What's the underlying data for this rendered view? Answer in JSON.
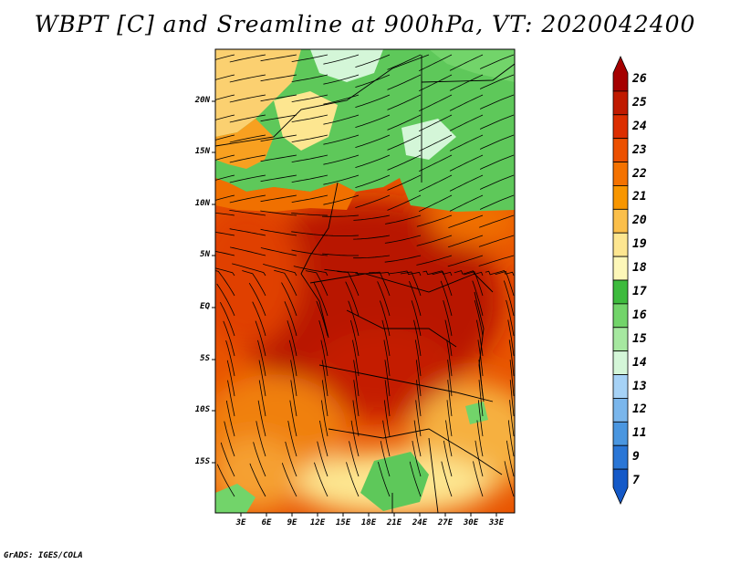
{
  "title": "WBPT [C] and Sreamline at 900hPa, VT: 2020042400",
  "credit": "GrADS: IGES/COLA",
  "map": {
    "y_ticks": [
      "20N",
      "15N",
      "10N",
      "5N",
      "EQ",
      "5S",
      "10S",
      "15S"
    ],
    "x_ticks": [
      "3E",
      "6E",
      "9E",
      "12E",
      "15E",
      "18E",
      "21E",
      "24E",
      "27E",
      "30E",
      "33E"
    ]
  },
  "colorbar": {
    "labels": [
      "26",
      "25",
      "24",
      "23",
      "22",
      "21",
      "20",
      "19",
      "18",
      "17",
      "16",
      "15",
      "14",
      "13",
      "12",
      "11",
      "9",
      "7"
    ],
    "colors": [
      "#a50000",
      "#c01a00",
      "#dc2e00",
      "#ec5000",
      "#f47200",
      "#f89600",
      "#fbbf4a",
      "#fde690",
      "#fdf7b8",
      "#3dbb3d",
      "#72d46a",
      "#a6e8a0",
      "#d4f6d8",
      "#a6d2f6",
      "#7ab6ec",
      "#4a96e0",
      "#2a76d6",
      "#1459c8"
    ]
  }
}
